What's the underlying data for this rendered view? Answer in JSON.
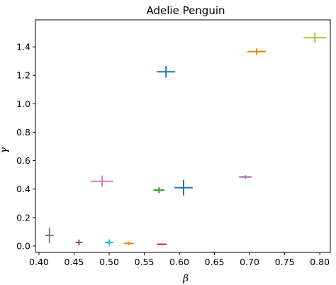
{
  "chart_data": {
    "type": "scatter",
    "title": "Adelie Penguin",
    "xlabel": "β",
    "ylabel": "γ",
    "xlim": [
      0.395,
      0.815
    ],
    "ylim": [
      -0.045,
      1.59
    ],
    "xticks": [
      0.4,
      0.45,
      0.5,
      0.55,
      0.6,
      0.65,
      0.7,
      0.75,
      0.8
    ],
    "xtick_labels": [
      "0.40",
      "0.45",
      "0.50",
      "0.55",
      "0.60",
      "0.65",
      "0.70",
      "0.75",
      "0.80"
    ],
    "yticks": [
      0.0,
      0.2,
      0.4,
      0.6,
      0.8,
      1.0,
      1.2,
      1.4
    ],
    "ytick_labels": [
      "0.0",
      "0.2",
      "0.4",
      "0.6",
      "0.8",
      "1.0",
      "1.2",
      "1.4"
    ],
    "grid": false,
    "marker": "error-bar cross",
    "series": [
      {
        "color": "#1f77b4",
        "points": [
          {
            "x": 0.581,
            "y": 1.225,
            "xerr": 0.013,
            "yerr": 0.04
          }
        ]
      },
      {
        "color": "#ff7f0e",
        "points": [
          {
            "x": 0.71,
            "y": 1.367,
            "xerr": 0.013,
            "yerr": 0.022
          }
        ]
      },
      {
        "color": "#bcbd22",
        "points": [
          {
            "x": 0.793,
            "y": 1.465,
            "xerr": 0.016,
            "yerr": 0.035
          }
        ]
      },
      {
        "color": "#e377c2",
        "points": [
          {
            "x": 0.49,
            "y": 0.455,
            "xerr": 0.016,
            "yerr": 0.04
          }
        ]
      },
      {
        "color": "#2ca02c",
        "points": [
          {
            "x": 0.571,
            "y": 0.393,
            "xerr": 0.008,
            "yerr": 0.02
          }
        ]
      },
      {
        "color": "#1f77b4",
        "points": [
          {
            "x": 0.606,
            "y": 0.41,
            "xerr": 0.013,
            "yerr": 0.055
          }
        ]
      },
      {
        "color": "#9467bd",
        "points": [
          {
            "x": 0.694,
            "y": 0.485,
            "xerr": 0.009,
            "yerr": 0.012
          }
        ]
      },
      {
        "color": "#7f7f7f",
        "points": [
          {
            "x": 0.415,
            "y": 0.075,
            "xerr": 0.006,
            "yerr": 0.055
          }
        ]
      },
      {
        "color": "#8c564b",
        "points": [
          {
            "x": 0.457,
            "y": 0.025,
            "xerr": 0.005,
            "yerr": 0.02
          }
        ]
      },
      {
        "color": "#17becf",
        "points": [
          {
            "x": 0.5,
            "y": 0.025,
            "xerr": 0.006,
            "yerr": 0.022
          }
        ]
      },
      {
        "color": "#ff7f0e",
        "points": [
          {
            "x": 0.528,
            "y": 0.018,
            "xerr": 0.007,
            "yerr": 0.012
          }
        ]
      },
      {
        "color": "#d62728",
        "points": [
          {
            "x": 0.575,
            "y": 0.012,
            "xerr": 0.007,
            "yerr": 0.005
          }
        ]
      }
    ]
  }
}
